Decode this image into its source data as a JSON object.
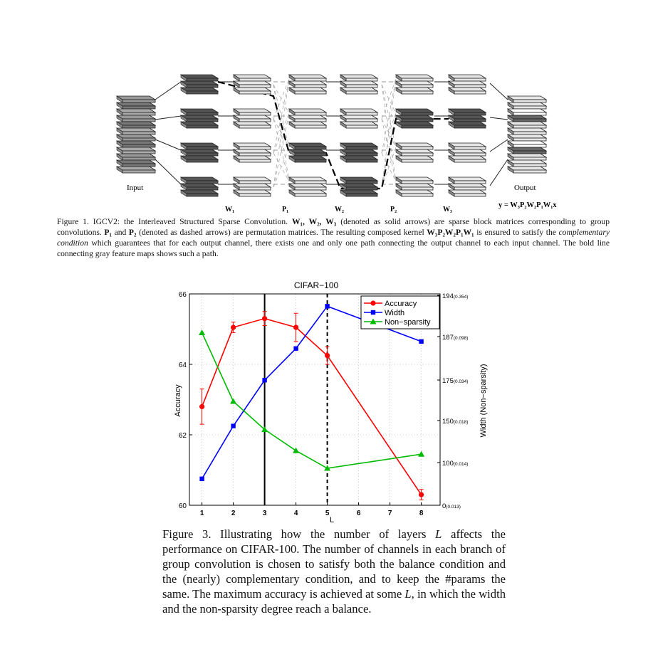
{
  "figure1": {
    "input_label": "Input",
    "output_label": "Output",
    "stage_labels": [
      "W₁",
      "P₁",
      "W₂",
      "P₂",
      "W₃"
    ],
    "equation": "y = W₃P₂W₂P₁W₁x",
    "caption": {
      "p1": "Figure 1.  IGCV2: the Interleaved Structured Sparse Convolution. ",
      "b1": "W₁, W₂, W₃",
      "p2": " (denoted as solid arrows) are sparse block matrices corresponding to group convolutions. ",
      "b2": "P₁",
      "p3": " and ",
      "b3": "P₂",
      "p4": " (denoted as dashed arrows) are permutation matrices. The resulting composed kernel ",
      "b4": "W₃P₂W₂P₁W₁",
      "p5": " is ensured to satisfy the ",
      "i1": "complementary condition",
      "p6": " which guarantees that for each output channel, there exists one and only one path connecting the output channel to each input channel. The bold line connecting gray feature maps shows such a path."
    }
  },
  "chart_data": {
    "type": "line",
    "title": "CIFAR−100",
    "xlabel": "L",
    "ylabel": "Accuracy",
    "y2label": "Width (Non−sparsity)",
    "x_ticks": [
      1,
      2,
      3,
      4,
      5,
      6,
      7,
      8
    ],
    "xlim": [
      0.6,
      8.6
    ],
    "ylim": [
      60,
      66
    ],
    "y_ticks": [
      60,
      62,
      64,
      66
    ],
    "y2_ticks": [
      {
        "label": "0",
        "sub": "(0.013)"
      },
      {
        "label": "100",
        "sub": "(0.014)"
      },
      {
        "label": "150",
        "sub": "(0.018)"
      },
      {
        "label": "175",
        "sub": "(0.034)"
      },
      {
        "label": "187",
        "sub": "(0.098)"
      },
      {
        "label": "194",
        "sub": "(0.354)"
      }
    ],
    "grid": true,
    "legend_position": "top-right",
    "vlines": [
      {
        "x": 3,
        "style": "solid"
      },
      {
        "x": 5,
        "style": "dashed"
      }
    ],
    "series": [
      {
        "name": "Accuracy",
        "color": "#ff0000",
        "marker": "circle",
        "x": [
          1,
          2,
          3,
          4,
          5,
          8
        ],
        "y": [
          62.8,
          65.05,
          65.3,
          65.05,
          64.25,
          60.3
        ],
        "err": [
          0.5,
          0.15,
          0.2,
          0.4,
          0.25,
          0.15
        ]
      },
      {
        "name": "Width",
        "color": "#0000ff",
        "marker": "square",
        "x": [
          1,
          2,
          3,
          4,
          5,
          8
        ],
        "y": [
          60.75,
          62.25,
          63.55,
          64.45,
          65.65,
          64.65
        ]
      },
      {
        "name": "Non−sparsity",
        "color": "#00bb00",
        "marker": "triangle",
        "x": [
          1,
          2,
          3,
          4,
          5,
          8
        ],
        "y": [
          64.9,
          62.95,
          62.15,
          61.55,
          61.05,
          61.45
        ]
      }
    ]
  },
  "figure3": {
    "caption": {
      "p1": "Figure 3. Illustrating how the number of layers ",
      "i1": "L",
      "p2": " affects the performance on CIFAR-100. The number of channels in each branch of group convolution is chosen to satisfy both the balance condition and the (nearly) complementary condition, and to keep the #params the same. The maximum accuracy is achieved at some ",
      "i2": "L",
      "p3": ", in which the width and the non-sparsity degree reach a balance."
    }
  }
}
